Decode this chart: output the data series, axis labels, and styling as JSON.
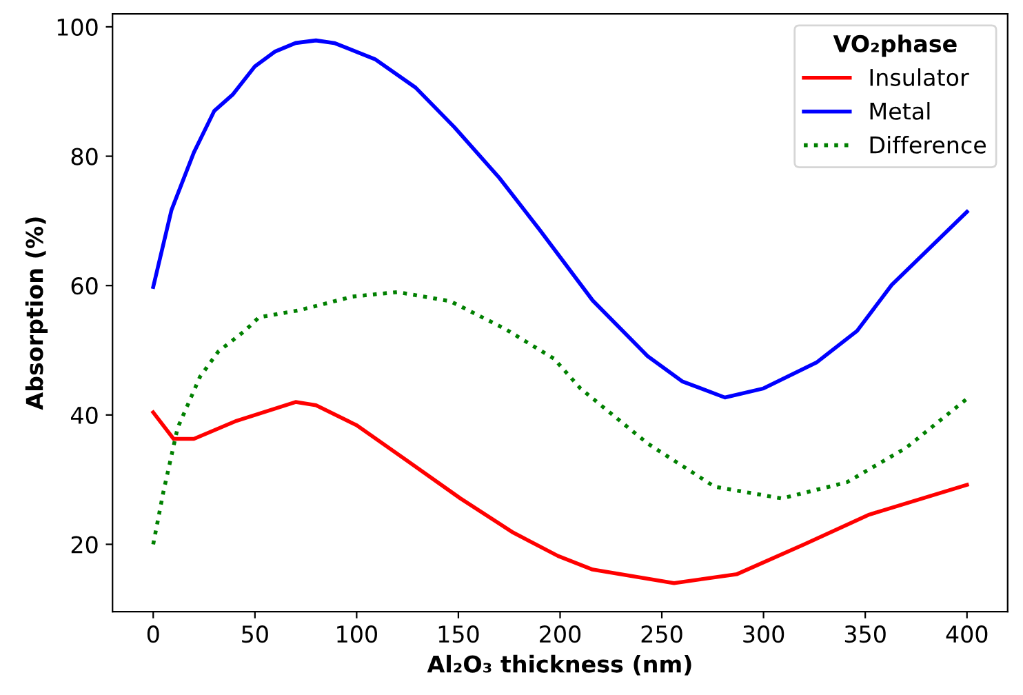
{
  "chart_data": {
    "type": "line",
    "xlabel": "Al₂O₃ thickness (nm)",
    "ylabel": "Absorption (%)",
    "legend_title": "VO₂phase",
    "legend": "top right",
    "xlim": [
      -20,
      420
    ],
    "ylim": [
      9.6,
      102
    ],
    "xticks": [
      0,
      50,
      100,
      150,
      200,
      250,
      300,
      350,
      400
    ],
    "yticks": [
      20,
      40,
      60,
      80,
      100
    ],
    "grid": false,
    "series": [
      {
        "name": "Insulator",
        "color": "#ff0000",
        "line_style": "solid",
        "x": [
          0,
          10,
          20,
          41,
          70,
          80,
          100,
          124,
          151,
          177,
          199,
          216,
          256,
          287,
          320,
          352,
          400
        ],
        "values": [
          40.4,
          36.3,
          36.3,
          39.1,
          42,
          41.5,
          38.4,
          33.1,
          27.1,
          21.8,
          18.2,
          16.1,
          14,
          15.4,
          20,
          24.6,
          29.2
        ]
      },
      {
        "name": "Metal",
        "color": "#0000ff",
        "line_style": "solid",
        "x": [
          0,
          9,
          20,
          30,
          39,
          50,
          60,
          70,
          80,
          89,
          109,
          129,
          148,
          170,
          190,
          216,
          243,
          260,
          281,
          300,
          326,
          346,
          363,
          400
        ],
        "values": [
          59.8,
          71.7,
          80.6,
          87,
          89.5,
          93.9,
          96.2,
          97.5,
          97.9,
          97.5,
          95,
          90.6,
          84.5,
          76.7,
          68.6,
          57.7,
          49.1,
          45.2,
          42.7,
          44.1,
          48.1,
          53,
          60.1,
          71.4
        ]
      },
      {
        "name": "Difference",
        "color": "#008000",
        "line_style": "dotted",
        "x": [
          0,
          5,
          12,
          23,
          32,
          45,
          52,
          72,
          98,
          120,
          146,
          173,
          197,
          210,
          243,
          276,
          309,
          341,
          370,
          400
        ],
        "values": [
          20,
          28.1,
          38,
          45.9,
          49.8,
          53,
          55.1,
          56.2,
          58.3,
          59,
          57.6,
          53.3,
          48.7,
          44.1,
          35.6,
          28.9,
          27.1,
          29.6,
          34.9,
          42.5
        ]
      }
    ]
  }
}
